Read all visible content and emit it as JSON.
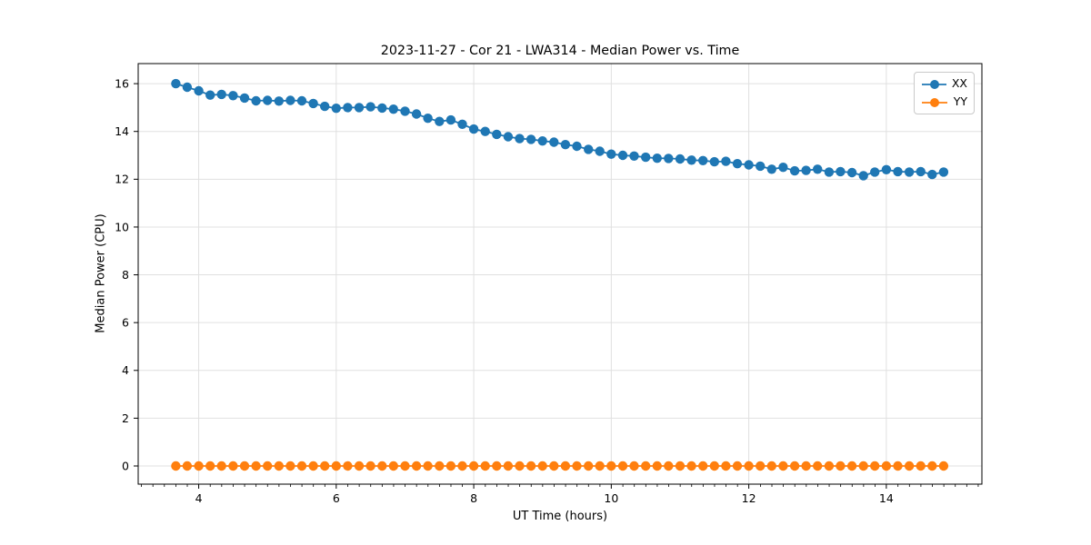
{
  "chart_data": {
    "type": "line",
    "title": "2023-11-27 - Cor 21 - LWA314 - Median Power vs. Time",
    "xlabel": "UT Time (hours)",
    "ylabel": "Median Power (CPU)",
    "xlim": [
      3.12,
      15.39
    ],
    "ylim": [
      -0.76,
      16.84
    ],
    "xticks": [
      4,
      6,
      8,
      10,
      12,
      14
    ],
    "yticks": [
      0,
      2,
      4,
      6,
      8,
      10,
      12,
      14,
      16
    ],
    "minor_xtick_step": 0.1667,
    "grid": true,
    "legend_position": "upper right",
    "x": [
      3.667,
      3.833,
      4.0,
      4.167,
      4.333,
      4.5,
      4.667,
      4.833,
      5.0,
      5.167,
      5.333,
      5.5,
      5.667,
      5.833,
      6.0,
      6.167,
      6.333,
      6.5,
      6.667,
      6.833,
      7.0,
      7.167,
      7.333,
      7.5,
      7.667,
      7.833,
      8.0,
      8.167,
      8.333,
      8.5,
      8.667,
      8.833,
      9.0,
      9.167,
      9.333,
      9.5,
      9.667,
      9.833,
      10.0,
      10.167,
      10.333,
      10.5,
      10.667,
      10.833,
      11.0,
      11.167,
      11.333,
      11.5,
      11.667,
      11.833,
      12.0,
      12.167,
      12.333,
      12.5,
      12.667,
      12.833,
      13.0,
      13.167,
      13.333,
      13.5,
      13.667,
      13.833,
      14.0,
      14.167,
      14.333,
      14.5,
      14.667,
      14.833
    ],
    "series": [
      {
        "name": "XX",
        "color": "#1f77b4",
        "values": [
          16.0,
          15.85,
          15.7,
          15.52,
          15.55,
          15.5,
          15.4,
          15.28,
          15.3,
          15.27,
          15.3,
          15.28,
          15.17,
          15.05,
          14.97,
          15.0,
          15.0,
          15.03,
          14.98,
          14.93,
          14.85,
          14.73,
          14.55,
          14.42,
          14.48,
          14.3,
          14.1,
          14.0,
          13.88,
          13.78,
          13.7,
          13.67,
          13.6,
          13.55,
          13.45,
          13.38,
          13.25,
          13.17,
          13.05,
          13.0,
          12.97,
          12.92,
          12.88,
          12.87,
          12.85,
          12.8,
          12.78,
          12.73,
          12.75,
          12.65,
          12.6,
          12.55,
          12.42,
          12.5,
          12.35,
          12.37,
          12.42,
          12.3,
          12.32,
          12.28,
          12.15,
          12.3,
          12.4,
          12.32,
          12.3,
          12.32,
          12.2,
          12.3
        ]
      },
      {
        "name": "YY",
        "color": "#ff7f0e",
        "values": [
          0,
          0,
          0,
          0,
          0,
          0,
          0,
          0,
          0,
          0,
          0,
          0,
          0,
          0,
          0,
          0,
          0,
          0,
          0,
          0,
          0,
          0,
          0,
          0,
          0,
          0,
          0,
          0,
          0,
          0,
          0,
          0,
          0,
          0,
          0,
          0,
          0,
          0,
          0,
          0,
          0,
          0,
          0,
          0,
          0,
          0,
          0,
          0,
          0,
          0,
          0,
          0,
          0,
          0,
          0,
          0,
          0,
          0,
          0,
          0,
          0,
          0,
          0,
          0,
          0,
          0,
          0,
          0
        ]
      }
    ],
    "style": {
      "grid_color": "#e0e0e0",
      "spine_color": "#000000",
      "marker_radius": 5.2,
      "line_width": 1.8
    }
  }
}
